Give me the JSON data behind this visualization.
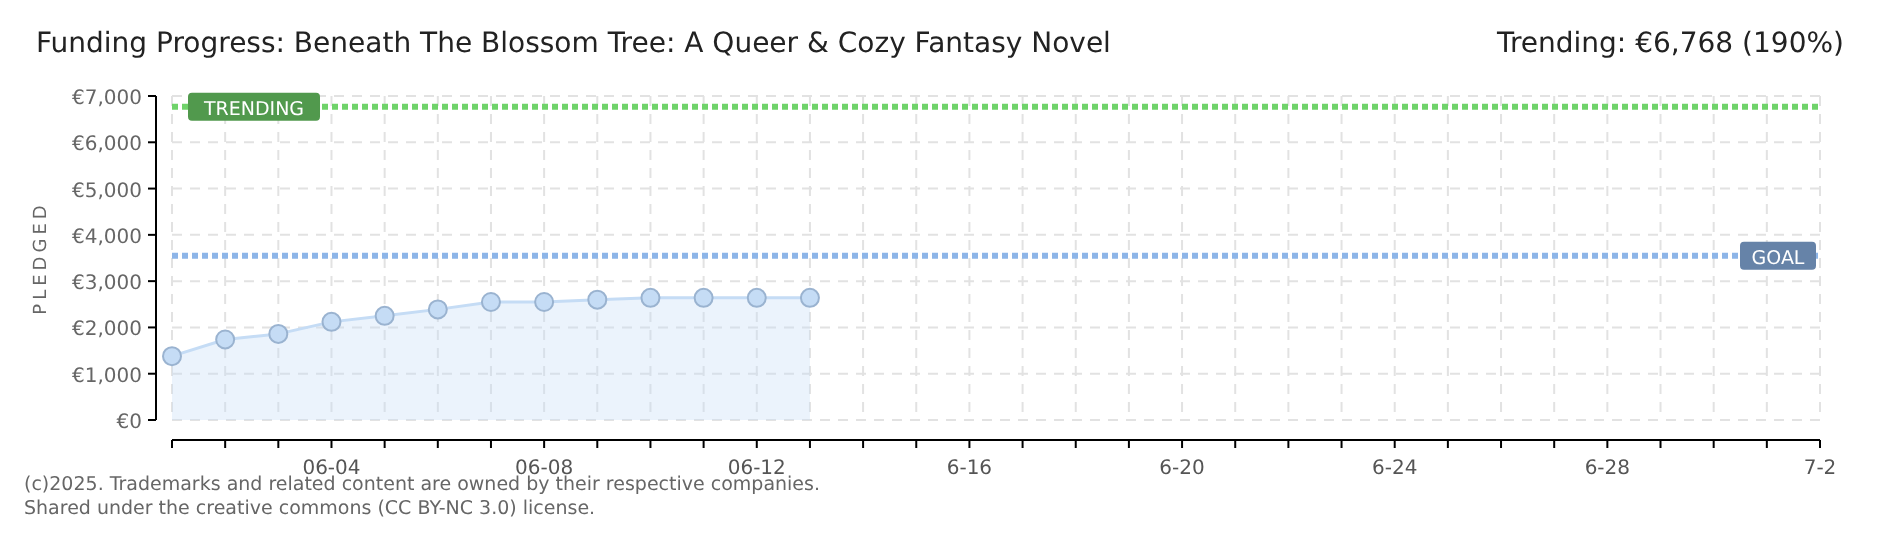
{
  "chart_data": {
    "type": "area",
    "title": "Funding Progress: Beneath The Blossom Tree: A Queer & Cozy Fantasy Novel",
    "subtitle": "Trending:  €6,768 (190%)",
    "ylabel": "PLEDGED",
    "categories": [
      null,
      null,
      null,
      "06-04",
      null,
      null,
      null,
      "06-08",
      null,
      null,
      null,
      "06-12",
      null,
      null,
      null,
      "6-16",
      null,
      null,
      null,
      "6-20",
      null,
      null,
      null,
      "6-24",
      null,
      null,
      null,
      "6-28",
      null,
      null,
      null,
      "7-2"
    ],
    "series": [
      {
        "color": "#c5dcf5",
        "values": [
          1380,
          1740,
          1860,
          2120,
          2250,
          2390,
          2550,
          2550,
          2600,
          2640,
          2640,
          2640,
          2640,
          null,
          null,
          null,
          null,
          null,
          null,
          null,
          null,
          null,
          null,
          null,
          null,
          null,
          null,
          null,
          null,
          null,
          null,
          null
        ]
      }
    ],
    "ylim": [
      0,
      7000
    ],
    "yticks": [
      {
        "value": 0,
        "label": "€0"
      },
      {
        "value": 1000,
        "label": "€1,000"
      },
      {
        "value": 2000,
        "label": "€2,000"
      },
      {
        "value": 3000,
        "label": "€3,000"
      },
      {
        "value": 4000,
        "label": "€4,000"
      },
      {
        "value": 5000,
        "label": "€5,000"
      },
      {
        "value": 6000,
        "label": "€6,000"
      },
      {
        "value": 7000,
        "label": "€7,000"
      }
    ],
    "grid": true,
    "marker": "circle",
    "ref_lines": [
      {
        "axis": "y",
        "value": 6768,
        "label": "TRENDING",
        "color": "#6fd36a"
      },
      {
        "axis": "y",
        "value": 3550,
        "label": "GOAL",
        "color": "#8db5e8"
      }
    ],
    "annotations": [
      "(c)2025. Trademarks and related content are owned by their respective companies.",
      "Shared under the creative commons (CC BY-NC 3.0) license."
    ]
  }
}
